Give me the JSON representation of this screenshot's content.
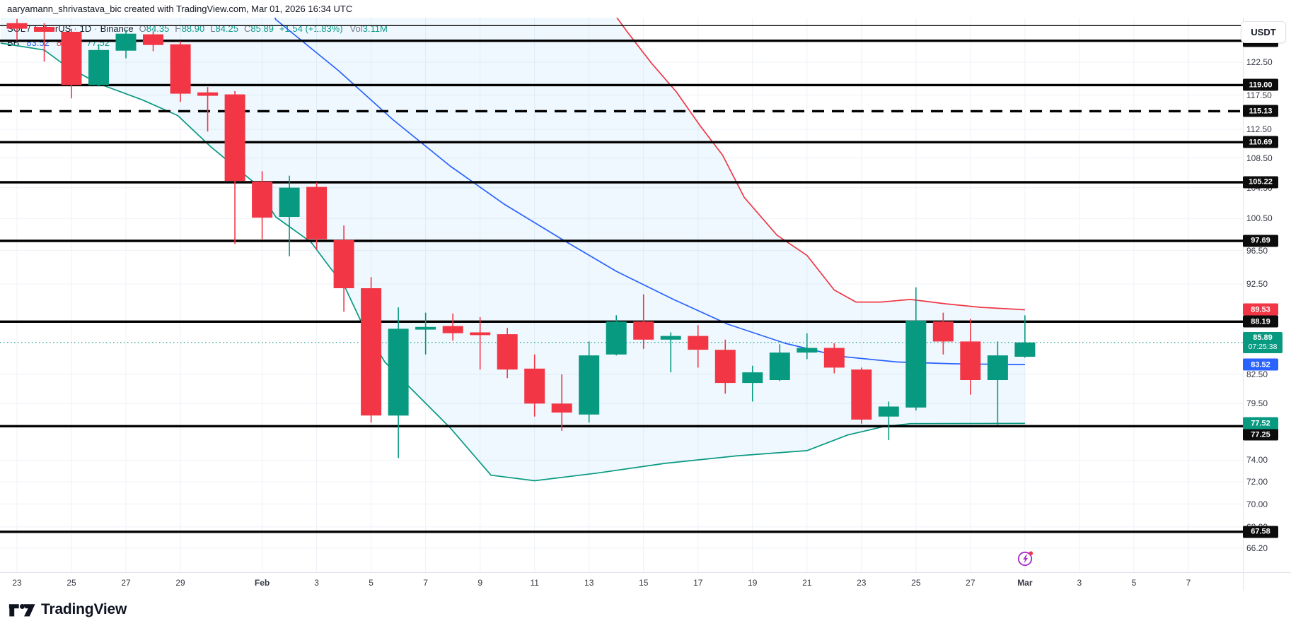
{
  "attribution": "aaryamann_shrivastava_bic created with TradingView.com, Mar 01, 2026 16:34 UTC",
  "legend": {
    "symbol": "SOL / TetherUS",
    "interval": "1D",
    "exchange": "Binance",
    "separator": "·",
    "ohlc": [
      {
        "k": "O",
        "v": "84.35"
      },
      {
        "k": "H",
        "v": "88.90"
      },
      {
        "k": "L",
        "v": "84.25"
      },
      {
        "k": "C",
        "v": "85.89"
      }
    ],
    "change": "+1.54 (+1.83%)",
    "vol_label": "Vol",
    "vol_value": "3.11M"
  },
  "indicator": {
    "name": "BB",
    "values": [
      {
        "v": "83.52",
        "color": "#2962ff"
      },
      {
        "v": "89.53",
        "color": "#f23645"
      },
      {
        "v": "77.52",
        "color": "#089981"
      }
    ]
  },
  "axis": {
    "currency": "USDT",
    "price_ticks": [
      122.5,
      117.5,
      112.5,
      108.5,
      104.5,
      100.5,
      96.5,
      92.5,
      82.5,
      79.5,
      74.0,
      72.0,
      70.0,
      68.0,
      66.2
    ],
    "time_ticks": [
      {
        "d": 0,
        "label": "23"
      },
      {
        "d": 2,
        "label": "25"
      },
      {
        "d": 4,
        "label": "27"
      },
      {
        "d": 6,
        "label": "29"
      },
      {
        "d": 9,
        "label": "Feb",
        "month": true
      },
      {
        "d": 11,
        "label": "3"
      },
      {
        "d": 13,
        "label": "5"
      },
      {
        "d": 15,
        "label": "7"
      },
      {
        "d": 17,
        "label": "9"
      },
      {
        "d": 19,
        "label": "11"
      },
      {
        "d": 21,
        "label": "13"
      },
      {
        "d": 23,
        "label": "15"
      },
      {
        "d": 25,
        "label": "17"
      },
      {
        "d": 27,
        "label": "19"
      },
      {
        "d": 29,
        "label": "21"
      },
      {
        "d": 31,
        "label": "23"
      },
      {
        "d": 33,
        "label": "25"
      },
      {
        "d": 35,
        "label": "27"
      },
      {
        "d": 37,
        "label": "Mar",
        "month": true
      },
      {
        "d": 39,
        "label": "3"
      },
      {
        "d": 41,
        "label": "5"
      },
      {
        "d": 43,
        "label": "7"
      }
    ]
  },
  "levels": [
    {
      "price": 128.3,
      "width": 1.4
    },
    {
      "price": 125.87,
      "width": 3.4,
      "label": "125.87"
    },
    {
      "price": 119.0,
      "width": 3.4,
      "label": "119.00"
    },
    {
      "price": 115.13,
      "width": 3.4,
      "label": "115.13",
      "dashed": true
    },
    {
      "price": 110.69,
      "width": 3.4,
      "label": "110.69"
    },
    {
      "price": 105.22,
      "width": 3.4,
      "label": "105.22"
    },
    {
      "price": 97.69,
      "width": 3.4,
      "label": "97.69"
    },
    {
      "price": 88.19,
      "width": 3.4,
      "label": "88.19"
    },
    {
      "price": 77.25,
      "width": 3.4,
      "label": "77.25",
      "label_dy": 12
    },
    {
      "price": 67.58,
      "width": 3.4,
      "label": "67.58"
    }
  ],
  "logo": {
    "name": "TradingView"
  },
  "events_icon": {
    "name": "lightning-events",
    "badge_color": "#f23645",
    "ring_color": "#a62bc9"
  },
  "chart_data": {
    "type": "candlestick",
    "title": "SOL / TetherUS · 1D · Binance",
    "scale": "log",
    "grid": true,
    "current_price": 85.89,
    "countdown": "07:25:38",
    "colors": {
      "up": "#089981",
      "down": "#f23645",
      "bb_basis": "#2962ff",
      "bb_upper": "#f23645",
      "bb_lower": "#089981",
      "bb_fill": "rgba(33,150,243,0.07)",
      "level": "#000000",
      "grid": "#eef1f7"
    },
    "axis_labels": {
      "indicator": [
        {
          "price": 89.53,
          "text": "89.53",
          "bg": "#f23645"
        },
        {
          "price": 83.52,
          "text": "83.52",
          "bg": "#2962ff"
        },
        {
          "price": 77.52,
          "text": "77.52",
          "bg": "#089981"
        }
      ],
      "current": {
        "price": 85.89,
        "text": "85.89",
        "countdown": "07:25:38",
        "bg": "#089981"
      }
    },
    "candles": [
      {
        "date": "Jan 23",
        "o": 128.7,
        "h": 129.4,
        "l": 125.9,
        "c": 127.8
      },
      {
        "date": "Jan 24",
        "o": 128.1,
        "h": 128.7,
        "l": 122.6,
        "c": 127.3
      },
      {
        "date": "Jan 25",
        "o": 127.3,
        "h": 127.8,
        "l": 117.0,
        "c": 119.0
      },
      {
        "date": "Jan 26",
        "o": 119.0,
        "h": 125.3,
        "l": 118.8,
        "c": 124.4
      },
      {
        "date": "Jan 27",
        "o": 124.3,
        "h": 127.6,
        "l": 123.1,
        "c": 127.0
      },
      {
        "date": "Jan 28",
        "o": 126.9,
        "h": 127.4,
        "l": 124.2,
        "c": 125.2
      },
      {
        "date": "Jan 29",
        "o": 125.3,
        "h": 125.8,
        "l": 116.5,
        "c": 117.7
      },
      {
        "date": "Jan 30",
        "o": 117.9,
        "h": 118.7,
        "l": 112.2,
        "c": 117.4
      },
      {
        "date": "Jan 31",
        "o": 117.6,
        "h": 118.1,
        "l": 97.3,
        "c": 105.4
      },
      {
        "date": "Feb 1",
        "o": 105.3,
        "h": 106.7,
        "l": 97.9,
        "c": 100.6
      },
      {
        "date": "Feb 2",
        "o": 100.7,
        "h": 106.1,
        "l": 95.8,
        "c": 104.5
      },
      {
        "date": "Feb 3",
        "o": 104.6,
        "h": 105.2,
        "l": 96.6,
        "c": 97.9
      },
      {
        "date": "Feb 4",
        "o": 97.8,
        "h": 99.6,
        "l": 89.3,
        "c": 92.0
      },
      {
        "date": "Feb 5",
        "o": 92.0,
        "h": 93.3,
        "l": 77.6,
        "c": 78.3
      },
      {
        "date": "Feb 6",
        "o": 78.3,
        "h": 89.8,
        "l": 74.2,
        "c": 87.4
      },
      {
        "date": "Feb 7",
        "o": 87.3,
        "h": 89.2,
        "l": 84.6,
        "c": 87.6
      },
      {
        "date": "Feb 8",
        "o": 87.7,
        "h": 89.1,
        "l": 86.1,
        "c": 86.9
      },
      {
        "date": "Feb 9",
        "o": 87.0,
        "h": 88.7,
        "l": 83.0,
        "c": 86.7
      },
      {
        "date": "Feb 10",
        "o": 86.8,
        "h": 87.5,
        "l": 82.1,
        "c": 83.0
      },
      {
        "date": "Feb 11",
        "o": 83.1,
        "h": 84.6,
        "l": 78.2,
        "c": 79.5
      },
      {
        "date": "Feb 12",
        "o": 79.5,
        "h": 82.5,
        "l": 76.8,
        "c": 78.6
      },
      {
        "date": "Feb 13",
        "o": 78.4,
        "h": 86.0,
        "l": 77.6,
        "c": 84.5
      },
      {
        "date": "Feb 14",
        "o": 84.6,
        "h": 88.9,
        "l": 84.5,
        "c": 88.2
      },
      {
        "date": "Feb 15",
        "o": 88.2,
        "h": 91.3,
        "l": 85.2,
        "c": 86.2
      },
      {
        "date": "Feb 16",
        "o": 86.2,
        "h": 87.0,
        "l": 82.7,
        "c": 86.6
      },
      {
        "date": "Feb 17",
        "o": 86.6,
        "h": 87.8,
        "l": 83.2,
        "c": 85.1
      },
      {
        "date": "Feb 18",
        "o": 85.1,
        "h": 86.2,
        "l": 80.5,
        "c": 81.6
      },
      {
        "date": "Feb 19",
        "o": 81.6,
        "h": 83.4,
        "l": 79.7,
        "c": 82.7
      },
      {
        "date": "Feb 20",
        "o": 81.9,
        "h": 85.7,
        "l": 81.8,
        "c": 84.8
      },
      {
        "date": "Feb 21",
        "o": 84.8,
        "h": 86.9,
        "l": 84.1,
        "c": 85.3
      },
      {
        "date": "Feb 22",
        "o": 85.3,
        "h": 85.8,
        "l": 82.6,
        "c": 83.2
      },
      {
        "date": "Feb 23",
        "o": 83.0,
        "h": 83.2,
        "l": 77.5,
        "c": 77.9
      },
      {
        "date": "Feb 24",
        "o": 78.2,
        "h": 79.7,
        "l": 75.9,
        "c": 79.2
      },
      {
        "date": "Feb 25",
        "o": 79.1,
        "h": 92.1,
        "l": 78.8,
        "c": 88.3
      },
      {
        "date": "Feb 26",
        "o": 88.2,
        "h": 89.2,
        "l": 84.6,
        "c": 86.0
      },
      {
        "date": "Feb 27",
        "o": 86.0,
        "h": 88.5,
        "l": 80.4,
        "c": 81.9
      },
      {
        "date": "Feb 28",
        "o": 81.9,
        "h": 86.0,
        "l": 77.4,
        "c": 84.5
      },
      {
        "date": "Mar 1",
        "o": 84.35,
        "h": 88.9,
        "l": 84.25,
        "c": 85.89
      }
    ],
    "bollinger": {
      "basis": [
        [
          8.6,
          140
        ],
        [
          9.5,
          129.3
        ],
        [
          11.8,
          121.2
        ],
        [
          13.8,
          113.9
        ],
        [
          15.9,
          107.4
        ],
        [
          17.9,
          102.3
        ],
        [
          20,
          97.9
        ],
        [
          22,
          94.0
        ],
        [
          24.1,
          90.7
        ],
        [
          26.1,
          87.9
        ],
        [
          28.2,
          85.8
        ],
        [
          30.2,
          84.4
        ],
        [
          32.3,
          83.8
        ],
        [
          34.4,
          83.6
        ],
        [
          37,
          83.52
        ]
      ],
      "upper": [
        [
          20.5,
          140
        ],
        [
          21.8,
          131.0
        ],
        [
          22.4,
          127.3
        ],
        [
          23.3,
          122.3
        ],
        [
          24.2,
          118.0
        ],
        [
          25.1,
          112.9
        ],
        [
          25.9,
          108.9
        ],
        [
          26.7,
          103.2
        ],
        [
          27.9,
          98.4
        ],
        [
          29,
          95.9
        ],
        [
          30,
          91.8
        ],
        [
          30.8,
          90.4
        ],
        [
          31.7,
          90.4
        ],
        [
          32.8,
          90.7
        ],
        [
          34.1,
          90.2
        ],
        [
          35.4,
          89.8
        ],
        [
          37,
          89.53
        ]
      ],
      "lower": [
        [
          -0.6,
          125.5
        ],
        [
          1,
          124.4
        ],
        [
          1.8,
          121.9
        ],
        [
          3,
          119.2
        ],
        [
          4.6,
          116.8
        ],
        [
          5.9,
          114.5
        ],
        [
          7.1,
          110.1
        ],
        [
          8.7,
          105.2
        ],
        [
          9.5,
          100.7
        ],
        [
          10.8,
          97.5
        ],
        [
          11.5,
          94.4
        ],
        [
          12,
          92.4
        ],
        [
          12.6,
          88.4
        ],
        [
          13.2,
          85.3
        ],
        [
          13.5,
          83.8
        ],
        [
          14.4,
          81.2
        ],
        [
          15.9,
          77.1
        ],
        [
          17.4,
          72.6
        ],
        [
          19,
          72.1
        ],
        [
          21.3,
          72.8
        ],
        [
          23.8,
          73.7
        ],
        [
          26.4,
          74.4
        ],
        [
          29,
          74.9
        ],
        [
          30.5,
          76.4
        ],
        [
          31.8,
          77.2
        ],
        [
          32.8,
          77.5
        ],
        [
          37,
          77.52
        ]
      ]
    }
  }
}
